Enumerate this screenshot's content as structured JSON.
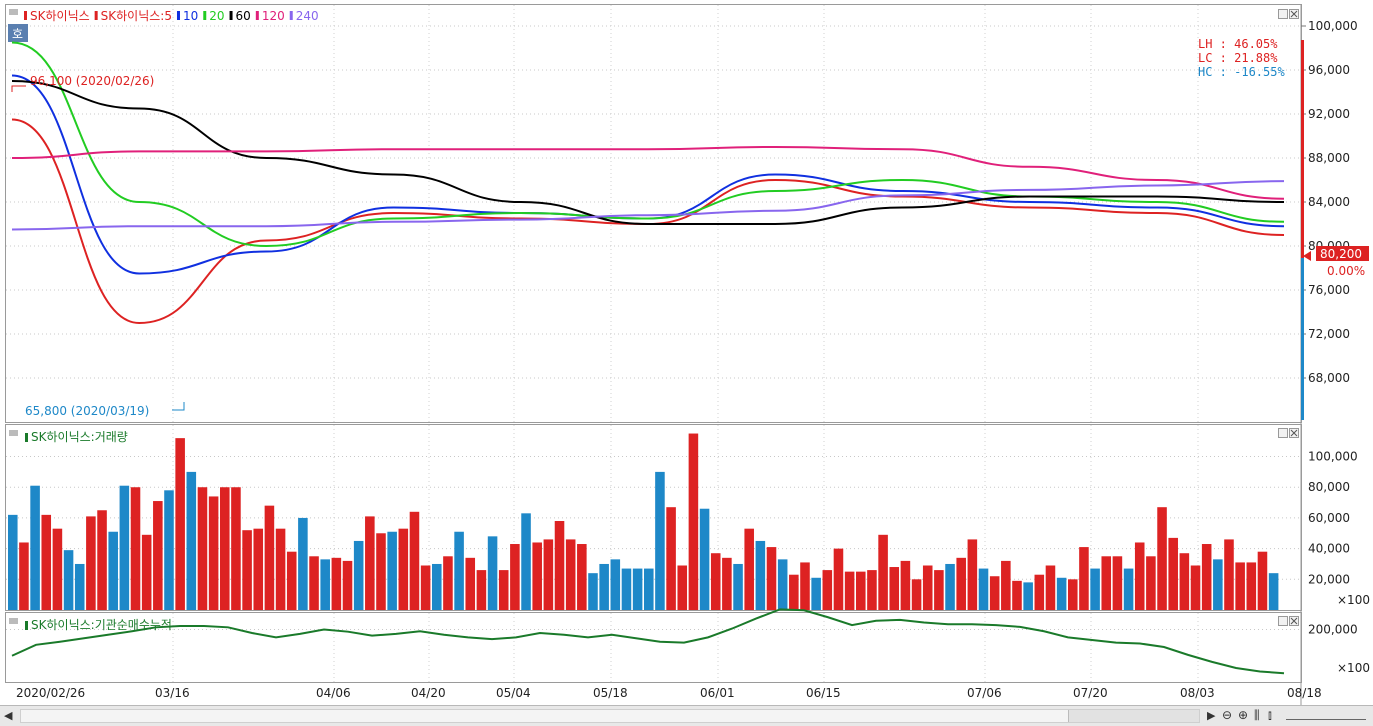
{
  "price_panel": {
    "badge": "호",
    "legend": [
      {
        "text": "SK하이닉스",
        "color": "#dd2222"
      },
      {
        "text": "SK하이닉스:5",
        "color": "#dd2222"
      },
      {
        "text": "10",
        "color": "#1030e0"
      },
      {
        "text": "20",
        "color": "#22cc22"
      },
      {
        "text": "60",
        "color": "#000000"
      },
      {
        "text": "120",
        "color": "#e0207a"
      },
      {
        "text": "240",
        "color": "#8866ee"
      }
    ],
    "stats": {
      "lh": "LH :  46.05%",
      "lc": "LC :  21.88%",
      "hc": "HC : -16.55%"
    },
    "high_annotation": "96,100 (2020/02/26)",
    "low_annotation": "65,800 (2020/03/19)",
    "current_price": "80,200",
    "current_change": "0.00%",
    "y_ticks": [
      "100,000",
      "96,000",
      "92,000",
      "88,000",
      "84,000",
      "80,000",
      "76,000",
      "72,000",
      "68,000"
    ]
  },
  "volume_panel": {
    "legend": "SK하이닉스:거래량",
    "y_ticks": [
      "100,000",
      "80,000",
      "60,000",
      "40,000",
      "20,000"
    ],
    "unit": "×100"
  },
  "inst_panel": {
    "legend": "SK하이닉스:기관순매수누적",
    "y_ticks": [
      "200,000"
    ],
    "unit": "×100"
  },
  "x_axis": {
    "labels": [
      "2020/02/26",
      "03/16",
      "04/06",
      "04/20",
      "05/04",
      "05/18",
      "06/01",
      "06/15",
      "07/06",
      "07/20",
      "08/03",
      "08/18"
    ]
  },
  "colors": {
    "up": "#dd2222",
    "down": "#1e88c8",
    "inst_line": "#1a7a2a",
    "axis_marker": "#dd2222"
  },
  "chart_data": [
    {
      "type": "line",
      "title": "SK하이닉스",
      "categories": [
        "2020/02/26",
        "03/16",
        "04/06",
        "04/20",
        "05/04",
        "05/18",
        "06/01",
        "06/15",
        "07/06",
        "07/20",
        "08/03"
      ],
      "series": [
        {
          "name": "SK하이닉스:5",
          "values": [
            91500,
            73000,
            80500,
            83000,
            82500,
            82000,
            86000,
            84500,
            83500,
            83000,
            81000
          ]
        },
        {
          "name": "10",
          "values": [
            95500,
            77500,
            79500,
            83500,
            83000,
            82500,
            86500,
            85000,
            84000,
            83500,
            81800
          ]
        },
        {
          "name": "20",
          "values": [
            98500,
            84000,
            80000,
            82500,
            83000,
            82500,
            85000,
            86000,
            84500,
            84000,
            82200
          ]
        },
        {
          "name": "60",
          "values": [
            95000,
            92500,
            88000,
            86500,
            84000,
            82000,
            82000,
            83500,
            84500,
            84500,
            84000
          ]
        },
        {
          "name": "120",
          "values": [
            88000,
            88600,
            88600,
            88800,
            88800,
            88800,
            89000,
            88800,
            87200,
            86000,
            84300
          ]
        },
        {
          "name": "240",
          "values": [
            81500,
            81800,
            81800,
            82200,
            82400,
            82800,
            83200,
            84600,
            85100,
            85500,
            85900
          ]
        }
      ],
      "ylim": [
        64000,
        102000
      ]
    },
    {
      "type": "bar",
      "title": "SK하이닉스:거래량",
      "ylim": [
        0,
        120000
      ],
      "values": [
        62000,
        44000,
        81000,
        62000,
        53000,
        39000,
        30000,
        61000,
        65000,
        51000,
        81000,
        80000,
        49000,
        71000,
        78000,
        112000,
        90000,
        80000,
        74000,
        80000,
        80000,
        52000,
        53000,
        68000,
        53000,
        38000,
        60000,
        35000,
        33000,
        34000,
        32000,
        45000,
        61000,
        50000,
        51000,
        53000,
        64000,
        29000,
        30000,
        35000,
        51000,
        34000,
        26000,
        48000,
        26000,
        43000,
        63000,
        44000,
        46000,
        58000,
        46000,
        43000,
        24000,
        30000,
        33000,
        27000,
        27000,
        27000,
        90000,
        67000,
        29000,
        115000,
        66000,
        37000,
        34000,
        30000,
        53000,
        45000,
        41000,
        33000,
        23000,
        31000,
        21000,
        26000,
        40000,
        25000,
        25000,
        26000,
        49000,
        28000,
        32000,
        20000,
        29000,
        26000,
        30000,
        34000,
        46000,
        27000,
        22000,
        32000,
        19000,
        18000,
        23000,
        29000,
        21000,
        20000,
        41000,
        27000,
        35000,
        35000,
        27000,
        44000,
        35000,
        67000,
        47000,
        37000,
        29000,
        43000,
        33000,
        46000,
        31000,
        31000,
        38000,
        24000
      ]
    },
    {
      "type": "line",
      "title": "SK하이닉스:기관순매수누적",
      "series": [
        {
          "name": "SK하이닉스:기관순매수누적",
          "values": [
            140000,
            165000,
            172000,
            180000,
            188000,
            196000,
            205000,
            208000,
            208000,
            205000,
            192000,
            182000,
            190000,
            200000,
            195000,
            186000,
            190000,
            196000,
            188000,
            182000,
            178000,
            182000,
            192000,
            188000,
            182000,
            188000,
            180000,
            172000,
            170000,
            182000,
            202000,
            225000,
            246000,
            244000,
            228000,
            210000,
            220000,
            222000,
            216000,
            212000,
            212000,
            210000,
            206000,
            196000,
            182000,
            176000,
            170000,
            168000,
            160000,
            142000,
            126000,
            112000,
            104000,
            100000
          ]
        }
      ],
      "ylim": [
        80000,
        240000
      ]
    }
  ]
}
